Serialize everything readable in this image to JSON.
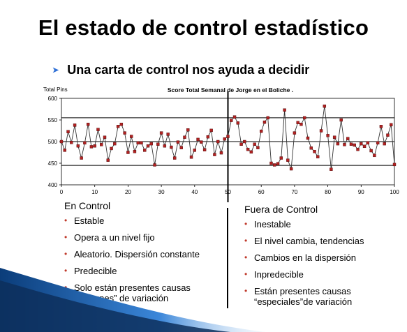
{
  "slide": {
    "title": "El estado de control estadístico",
    "subtitle": "Una carta de control nos ayuda a decidir"
  },
  "left_column": {
    "heading": "En Control",
    "items": [
      "Estable",
      "Opera a un nivel fijo",
      "Aleatorio. Dispersión constante",
      "Predecible",
      "Solo están presentes causas “comunes” de variación"
    ]
  },
  "right_column": {
    "heading": "Fuera de Control",
    "items": [
      "Inestable",
      "El nivel cambia, tendencias",
      "Cambios en la dispersión",
      "Inpredecible",
      "Están presentes causas “especiales”de variación"
    ]
  },
  "colors": {
    "bullet_arrow": "#2e6fd6",
    "bullet": "#c0392b",
    "marker": "#b22222",
    "swoosh": "#1f5fa8"
  },
  "chart_data": {
    "type": "line",
    "title": "Score Total Semanal de Jorge en el Boliche .",
    "ylabel": "Total Pins",
    "xlabel": "",
    "xlim": [
      0,
      100
    ],
    "ylim": [
      400,
      600
    ],
    "x_ticks": [
      0,
      10,
      20,
      30,
      40,
      50,
      60,
      70,
      80,
      90,
      100
    ],
    "y_ticks": [
      400,
      450,
      500,
      550,
      600
    ],
    "control_limits": {
      "upper": 555,
      "center": 500,
      "lower": 445
    },
    "divider_x": 50,
    "series": [
      {
        "x": [
          0,
          1,
          2,
          3,
          4,
          5,
          6,
          7,
          8,
          9,
          10,
          11,
          12,
          13,
          14,
          15,
          16,
          17,
          18,
          19,
          20,
          21,
          22,
          23,
          24,
          25,
          26,
          27,
          28,
          29,
          30,
          31,
          32,
          33,
          34,
          35,
          36,
          37,
          38,
          39,
          40,
          41,
          42,
          43,
          44,
          45,
          46,
          47,
          48,
          49,
          50,
          51,
          52,
          53,
          54,
          55,
          56,
          57,
          58,
          59,
          60,
          61,
          62,
          63,
          64,
          65,
          66,
          67,
          68,
          69,
          70,
          71,
          72,
          73,
          74,
          75,
          76,
          77,
          78,
          79,
          80,
          81,
          82,
          83,
          84,
          85,
          86,
          87,
          88,
          89,
          90,
          91,
          92,
          93,
          94,
          95,
          96,
          97,
          98,
          99,
          100
        ],
        "values": [
          500,
          480,
          523,
          498,
          538,
          490,
          462,
          497,
          540,
          488,
          490,
          528,
          493,
          510,
          457,
          484,
          495,
          535,
          540,
          520,
          475,
          512,
          477,
          497,
          497,
          480,
          490,
          495,
          446,
          494,
          520,
          490,
          517,
          487,
          462,
          499,
          486,
          510,
          527,
          464,
          480,
          505,
          499,
          481,
          511,
          526,
          470,
          500,
          474,
          506,
          512,
          549,
          557,
          543,
          494,
          500,
          482,
          476,
          494,
          486,
          524,
          545,
          555,
          450,
          446,
          449,
          462,
          573,
          457,
          437,
          520,
          544,
          540,
          555,
          508,
          485,
          477,
          465,
          525,
          582,
          514,
          436,
          510,
          495,
          550,
          493,
          507,
          494,
          492,
          482,
          495,
          489,
          497,
          479,
          468,
          497,
          535,
          495,
          515,
          539,
          447
        ]
      }
    ]
  }
}
